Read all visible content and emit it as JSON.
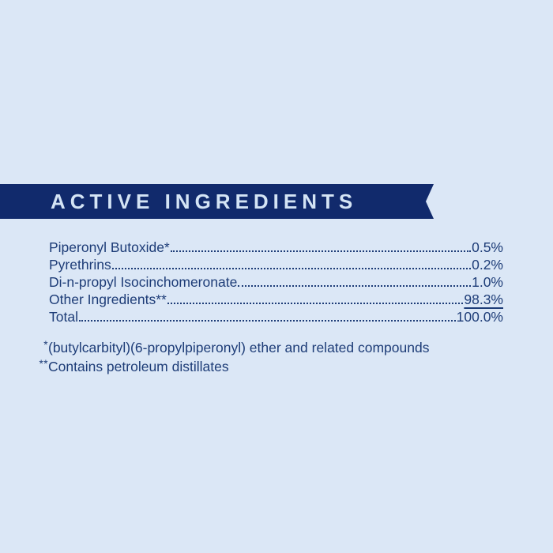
{
  "page": {
    "background_color": "#dbe7f6"
  },
  "banner": {
    "title": "ACTIVE INGREDIENTS",
    "background_color": "#112a6c",
    "text_color": "#d4e4f5",
    "shape": "ribbon-with-right-notch"
  },
  "ingredients": {
    "text_color": "#1d3c77",
    "rows": [
      {
        "label": "Piperonyl Butoxide*",
        "value": "0.5%"
      },
      {
        "label": "Pyrethrins",
        "value": "0.2%"
      },
      {
        "label": "Di-n-propyl Isocinchomeronate",
        "value": "1.0%"
      },
      {
        "label": "Other Ingredients**",
        "value": "98.3%"
      },
      {
        "label": "Total",
        "value": "100.0%"
      }
    ]
  },
  "footnotes": [
    {
      "marker": "*",
      "text": "(butylcarbityl)(6-propylpiperonyl) ether and related compounds"
    },
    {
      "marker": "**",
      "text": "Contains petroleum distillates"
    }
  ]
}
